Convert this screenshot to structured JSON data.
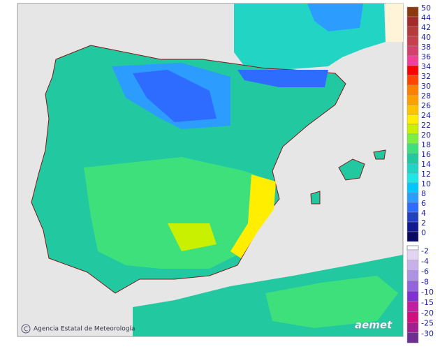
{
  "legend": {
    "upper": [
      {
        "label": 50,
        "color": "#8b3a0f"
      },
      {
        "label": 44,
        "color": "#a52a2a"
      },
      {
        "label": 42,
        "color": "#b53a3a"
      },
      {
        "label": 40,
        "color": "#c4404f"
      },
      {
        "label": 38,
        "color": "#d4406c"
      },
      {
        "label": 36,
        "color": "#f0409a"
      },
      {
        "label": 34,
        "color": "#ff0000"
      },
      {
        "label": 32,
        "color": "#ff4500"
      },
      {
        "label": 30,
        "color": "#ff7f00"
      },
      {
        "label": 28,
        "color": "#ffa000"
      },
      {
        "label": 26,
        "color": "#ffc400"
      },
      {
        "label": 24,
        "color": "#ffee00"
      },
      {
        "label": 22,
        "color": "#c8f000"
      },
      {
        "label": 20,
        "color": "#7cf040"
      },
      {
        "label": 18,
        "color": "#3ee07c"
      },
      {
        "label": 16,
        "color": "#22c8a0"
      },
      {
        "label": 14,
        "color": "#22d4c4"
      },
      {
        "label": 12,
        "color": "#20e6e6"
      },
      {
        "label": 10,
        "color": "#00c8ff"
      },
      {
        "label": 8,
        "color": "#2c9cff"
      },
      {
        "label": 6,
        "color": "#2e6cff"
      },
      {
        "label": 4,
        "color": "#2040c0"
      },
      {
        "label": 2,
        "color": "#121a90"
      },
      {
        "label": 0,
        "color": "#0a0a60"
      }
    ],
    "lower": [
      {
        "label": -2,
        "color": "#e2d4f2"
      },
      {
        "label": -4,
        "color": "#c8b0e8"
      },
      {
        "label": -6,
        "color": "#b092e2"
      },
      {
        "label": -8,
        "color": "#9464e0"
      },
      {
        "label": -10,
        "color": "#8030d0"
      },
      {
        "label": -15,
        "color": "#c020a0"
      },
      {
        "label": -20,
        "color": "#d0107e"
      },
      {
        "label": -25,
        "color": "#a0208e"
      },
      {
        "label": -30,
        "color": "#6e3090"
      }
    ]
  },
  "footer": {
    "agency": "Agencia Estatal de Meteorología",
    "logo": "aemet"
  }
}
